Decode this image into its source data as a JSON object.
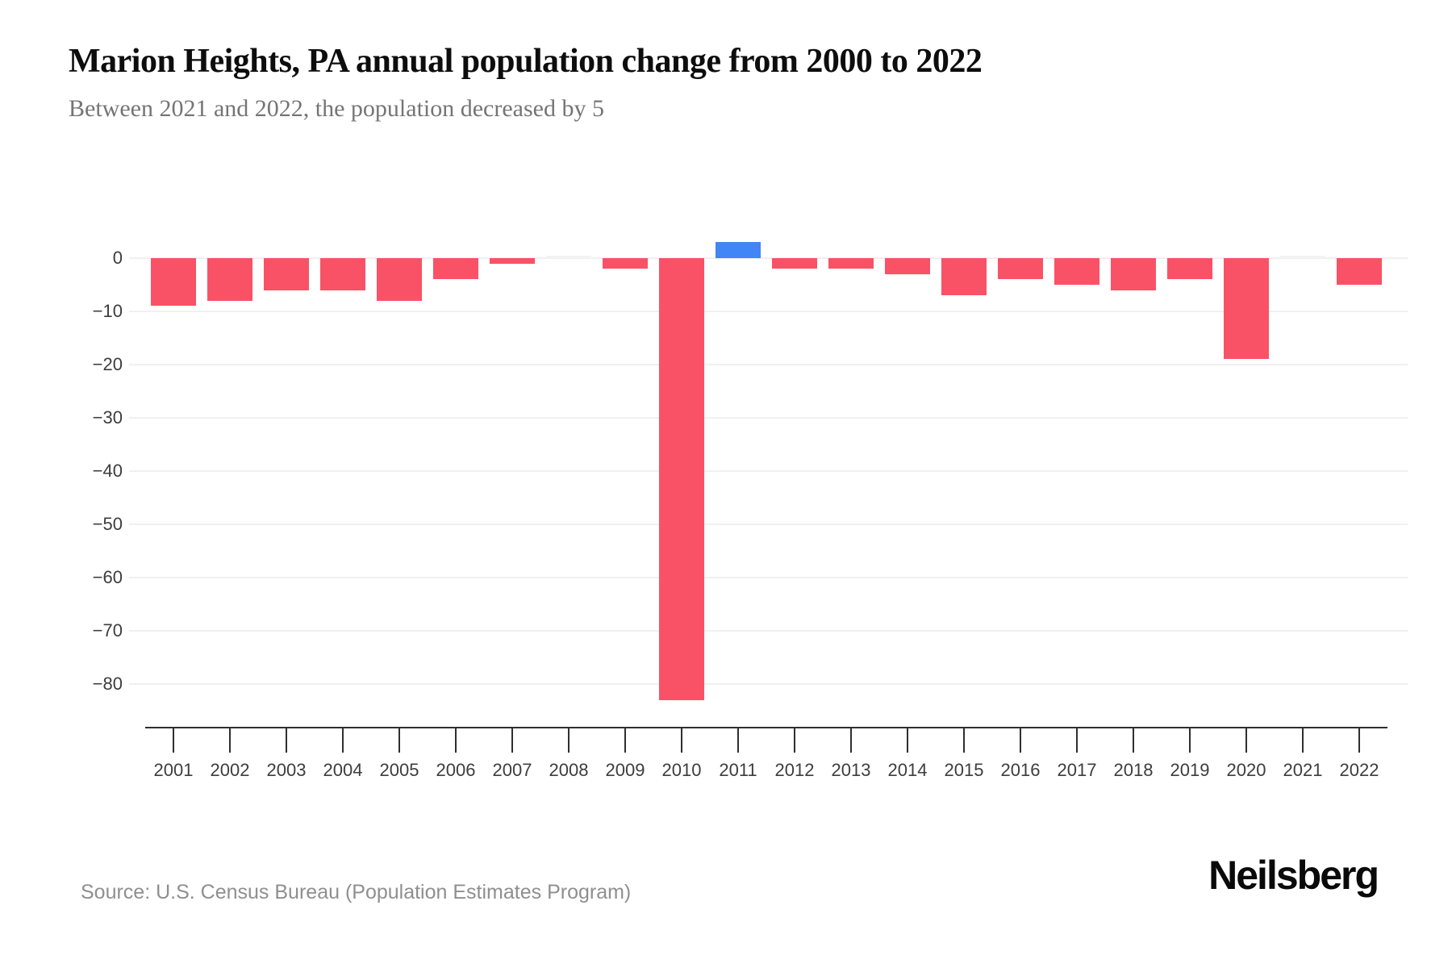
{
  "header": {
    "title": "Marion Heights, PA annual population change from 2000 to 2022",
    "subtitle": "Between 2021 and 2022, the population decreased by 5"
  },
  "footer": {
    "source": "Source: U.S. Census Bureau (Population Estimates Program)",
    "brand": "Neilsberg"
  },
  "chart_data": {
    "type": "bar",
    "title": "Marion Heights, PA annual population change from 2000 to 2022",
    "subtitle": "Between 2021 and 2022, the population decreased by 5",
    "xlabel": "",
    "ylabel": "",
    "categories": [
      "2001",
      "2002",
      "2003",
      "2004",
      "2005",
      "2006",
      "2007",
      "2008",
      "2009",
      "2010",
      "2011",
      "2012",
      "2013",
      "2014",
      "2015",
      "2016",
      "2017",
      "2018",
      "2019",
      "2020",
      "2021",
      "2022"
    ],
    "values": [
      -9,
      -8,
      -6,
      -6,
      -8,
      -4,
      -1,
      0,
      -2,
      -83,
      3,
      -2,
      -2,
      -3,
      -7,
      -4,
      -5,
      -6,
      -4,
      -19,
      0,
      -5
    ],
    "ylim": [
      -86,
      5
    ],
    "ytick_values": [
      0,
      -10,
      -20,
      -30,
      -40,
      -50,
      -60,
      -70,
      -80
    ],
    "ytick_labels": [
      "0",
      "−10",
      "−20",
      "−30",
      "−40",
      "−50",
      "−60",
      "−70",
      "−80"
    ],
    "grid": true,
    "legend": false,
    "colors": {
      "negative": "#f95266",
      "positive": "#4285f4",
      "zero": "#f3f3f3",
      "gridline": "#f0f0f0",
      "axis": "#2f2f2f",
      "tick_label": "#3d3d3d"
    }
  }
}
